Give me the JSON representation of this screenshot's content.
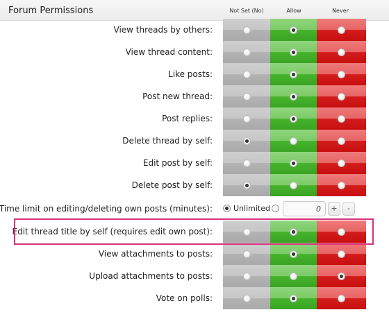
{
  "section": {
    "title": "Forum Permissions"
  },
  "columns": [
    "Not Set (No)",
    "Allow",
    "Never"
  ],
  "rows_top": [
    {
      "label": "View threads by others:",
      "selected": 1
    },
    {
      "label": "View thread content:",
      "selected": 1
    },
    {
      "label": "Like posts:",
      "selected": 1
    },
    {
      "label": "Post new thread:",
      "selected": 1
    },
    {
      "label": "Post replies:",
      "selected": 1
    },
    {
      "label": "Delete thread by self:",
      "selected": 0
    },
    {
      "label": "Edit post by self:",
      "selected": 1
    },
    {
      "label": "Delete post by self:",
      "selected": 0
    }
  ],
  "time_limit": {
    "label": "Time limit on editing/deleting own posts (minutes):",
    "unlimited_label": "Unlimited",
    "value": "0",
    "selected": "unlimited",
    "plus": "+",
    "minus": "-"
  },
  "rows_bottom": [
    {
      "label": "Edit thread title by self (requires edit own post):",
      "selected": 1,
      "highlighted": true
    },
    {
      "label": "View attachments to posts:",
      "selected": 1
    },
    {
      "label": "Upload attachments to posts:",
      "selected": 2
    },
    {
      "label": "Vote on polls:",
      "selected": 1
    }
  ],
  "colors": {
    "not_set": "#c6c6c6",
    "allow": "#46b32c",
    "never": "#d31c1c",
    "highlight": "#d9307f"
  }
}
